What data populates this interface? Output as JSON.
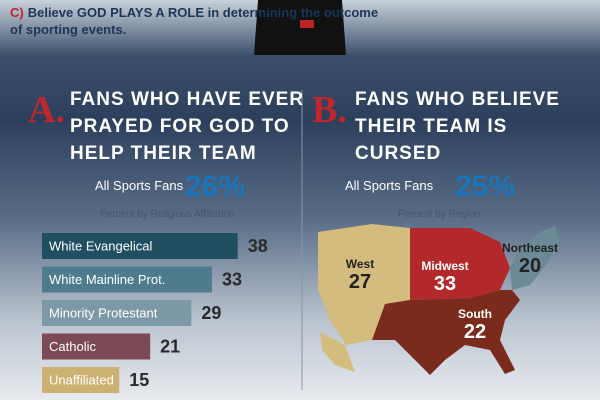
{
  "header": {
    "marker": "C)",
    "text": "Believe GOD PLAYS A ROLE in determining the outcome of sporting events."
  },
  "chart_data": [
    {
      "type": "bar",
      "letter": "A.",
      "title": "Fans Who Have Ever PRAYED for God to Help their Team",
      "overall_label": "All Sports Fans",
      "overall_value": "26%",
      "subtitle": "Percent by Religious Affiliation",
      "categories": [
        "White Evangelical",
        "White Mainline Prot.",
        "Minority Protestant",
        "Catholic",
        "Unaffiliated"
      ],
      "values": [
        38,
        33,
        29,
        21,
        15
      ],
      "colors": [
        "#1f4f60",
        "#4f7c8c",
        "#7d98a6",
        "#7b4a56",
        "#cdb173"
      ]
    },
    {
      "type": "map",
      "letter": "B.",
      "title": "Fans Who Believe Their Team is CURSED",
      "overall_label": "All Sports Fans",
      "overall_value": "25%",
      "subtitle": "Percent by Region",
      "categories": [
        "West",
        "Midwest",
        "Northeast",
        "South"
      ],
      "values": [
        27,
        33,
        20,
        22
      ],
      "colors": [
        "#d3bc7e",
        "#b3292b",
        "#6c8997",
        "#7a2b1b"
      ]
    }
  ]
}
